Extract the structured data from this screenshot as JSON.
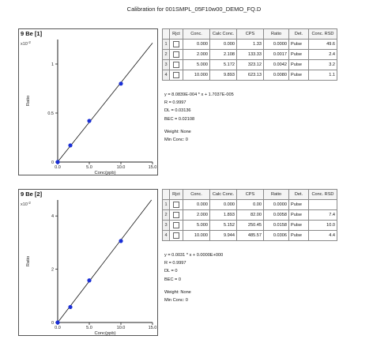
{
  "page_title": "Calibration for 001SMPL_05F10w00_DEMO_FQ.D",
  "table_headers": [
    "",
    "Rjct",
    "Conc.",
    "Calc Conc.",
    "CPS",
    "Ratio",
    "Det.",
    "Conc. RSD"
  ],
  "calibrations": [
    {
      "chart_title": "9 Be [1]",
      "rows": [
        {
          "idx": "1",
          "conc": "0.000",
          "calc": "0.000",
          "cps": "1.33",
          "ratio": "0.0000",
          "det": "Pulse",
          "rsd": "49.6"
        },
        {
          "idx": "2",
          "conc": "2.000",
          "calc": "2.108",
          "cps": "133.33",
          "ratio": "0.0017",
          "det": "Pulse",
          "rsd": "2.4"
        },
        {
          "idx": "3",
          "conc": "5.000",
          "calc": "5.172",
          "cps": "323.12",
          "ratio": "0.0042",
          "det": "Pulse",
          "rsd": "3.2"
        },
        {
          "idx": "4",
          "conc": "10.000",
          "calc": "9.893",
          "cps": "623.13",
          "ratio": "0.0080",
          "det": "Pulse",
          "rsd": "1.1"
        }
      ],
      "equation": "y = 8.0839E-004 * x + 1.7037E-005",
      "r_line": "R = 0.9997",
      "dl_line": "DL = 0.03136",
      "bec_line": "BEC = 0.02108",
      "weight_line": "Weight: None",
      "minconc_line": "Min Conc: 0"
    },
    {
      "chart_title": "9 Be [2]",
      "rows": [
        {
          "idx": "1",
          "conc": "0.000",
          "calc": "0.000",
          "cps": "0.00",
          "ratio": "0.0000",
          "det": "Pulse",
          "rsd": ""
        },
        {
          "idx": "2",
          "conc": "2.000",
          "calc": "1.893",
          "cps": "82.00",
          "ratio": "0.0058",
          "det": "Pulse",
          "rsd": "7.4"
        },
        {
          "idx": "3",
          "conc": "5.000",
          "calc": "5.152",
          "cps": "250.45",
          "ratio": "0.0158",
          "det": "Pulse",
          "rsd": "10.0"
        },
        {
          "idx": "4",
          "conc": "10.000",
          "calc": "9.944",
          "cps": "485.57",
          "ratio": "0.0306",
          "det": "Pulse",
          "rsd": "4.4"
        }
      ],
      "equation": "y = 0.0031 * x + 0.0000E+000",
      "r_line": "R = 0.9997",
      "dl_line": "DL = 0",
      "bec_line": "BEC = 0",
      "weight_line": "Weight: None",
      "minconc_line": "Min Conc: 0"
    }
  ],
  "chart_data": [
    {
      "type": "scatter",
      "title": "9 Be [1]",
      "xlabel": "Conc(ppb)",
      "ylabel": "Ratio",
      "y_multiplier_label": "x10",
      "y_multiplier_exp": "-2",
      "xlim": [
        0,
        15
      ],
      "ylim": [
        0,
        1.25
      ],
      "xticks": [
        0,
        5,
        10,
        15
      ],
      "xtick_labels": [
        "0.0",
        "5.0",
        "10.0",
        "15.0"
      ],
      "yticks": [
        0,
        0.5,
        1
      ],
      "ytick_labels": [
        "0",
        "0.5",
        "1"
      ],
      "points": [
        {
          "x": 0,
          "y": 0
        },
        {
          "x": 2,
          "y": 0.17
        },
        {
          "x": 5,
          "y": 0.42
        },
        {
          "x": 10,
          "y": 0.8
        }
      ],
      "fit": {
        "slope": 0.080839,
        "intercept": 0.0017037
      },
      "point_color": "#1a2fd6",
      "line_color": "#111111",
      "grid": false
    },
    {
      "type": "scatter",
      "title": "9 Be [2]",
      "xlabel": "Conc(ppb)",
      "ylabel": "Ratio",
      "y_multiplier_label": "x10",
      "y_multiplier_exp": "-2",
      "xlim": [
        0,
        15
      ],
      "ylim": [
        0,
        4.6
      ],
      "xticks": [
        0,
        5,
        10,
        15
      ],
      "xtick_labels": [
        "0.0",
        "5.0",
        "10.0",
        "15.0"
      ],
      "yticks": [
        0,
        2,
        4
      ],
      "ytick_labels": [
        "0",
        "2",
        "4"
      ],
      "points": [
        {
          "x": 0,
          "y": 0
        },
        {
          "x": 2,
          "y": 0.58
        },
        {
          "x": 5,
          "y": 1.58
        },
        {
          "x": 10,
          "y": 3.06
        }
      ],
      "fit": {
        "slope": 0.31,
        "intercept": 0
      },
      "point_color": "#1a2fd6",
      "line_color": "#111111",
      "grid": false
    }
  ]
}
